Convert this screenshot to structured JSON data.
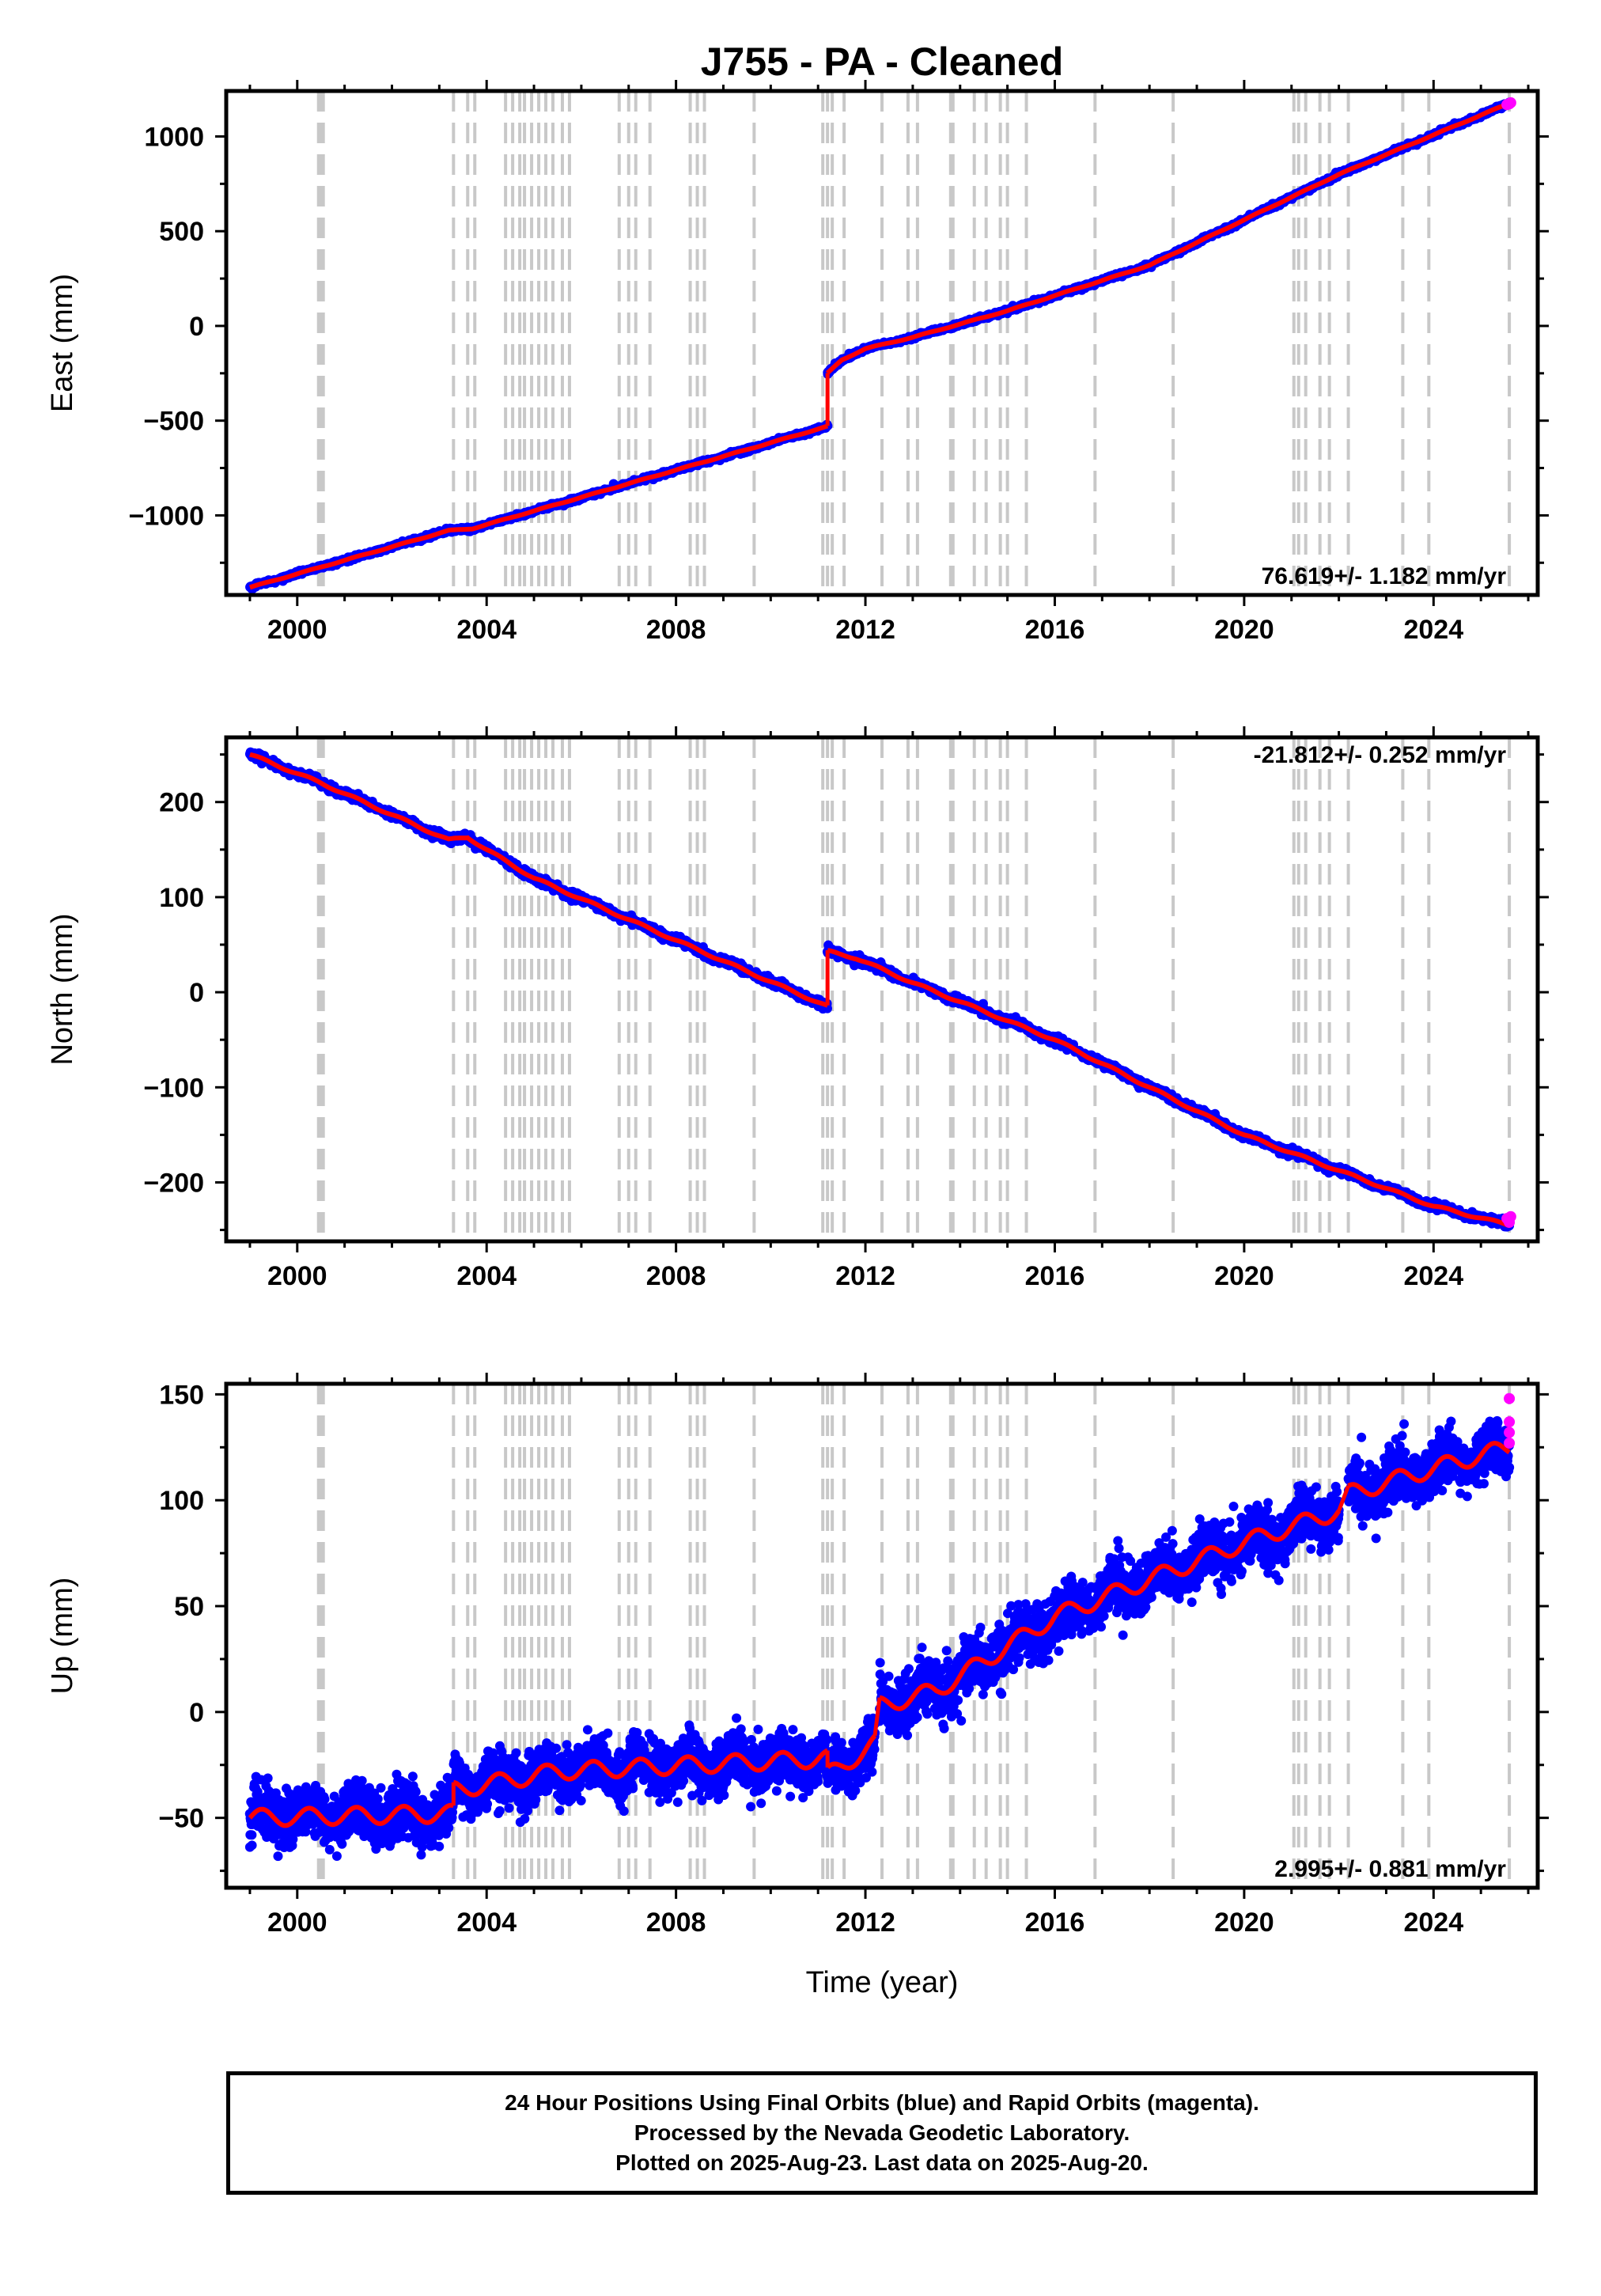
{
  "title": "J755  - PA - Cleaned",
  "x_axis_label": "Time (year)",
  "footer": {
    "line1": "24 Hour Positions Using Final Orbits (blue) and Rapid Orbits (magenta).",
    "line2": "Processed by the Nevada Geodetic Laboratory.",
    "line3": "Plotted on 2025-Aug-23. Last data on 2025-Aug-20."
  },
  "colors": {
    "final_orbits": "#0000ff",
    "rapid_orbits": "#ff00ff",
    "model": "#ff0000",
    "event_lines": "#c8c8c8"
  },
  "chart_data": [
    {
      "type": "scatter",
      "name": "east",
      "ylabel": "East (mm)",
      "xlim": [
        1998.5,
        2026.2
      ],
      "ylim": [
        -1420,
        1240
      ],
      "yticks": [
        -1000,
        -500,
        0,
        500,
        1000
      ],
      "xticks": [
        2000,
        2004,
        2008,
        2012,
        2016,
        2020,
        2024
      ],
      "rate_label": "76.619+/- 1.182 mm/yr",
      "rate_position": "bottom-right",
      "scatter_spread": 10,
      "segments": [
        {
          "x": [
            1999.0,
            2003.2,
            2003.7,
            2011.2
          ],
          "y": [
            -1380,
            -1080,
            -1070,
            -530
          ]
        },
        {
          "x": [
            2011.2,
            2011.5,
            2012.0,
            2013.0,
            2015.0,
            2018.0,
            2022.0,
            2025.6
          ],
          "y": [
            -250,
            -180,
            -120,
            -60,
            80,
            320,
            800,
            1175
          ]
        }
      ],
      "rapid_points": {
        "x": [
          2025.55,
          2025.6,
          2025.63
        ],
        "y": [
          1168,
          1172,
          1178
        ]
      }
    },
    {
      "type": "scatter",
      "name": "north",
      "ylabel": "North (mm)",
      "xlim": [
        1998.5,
        2026.2
      ],
      "ylim": [
        -262,
        268
      ],
      "yticks": [
        -200,
        -100,
        0,
        100,
        200
      ],
      "xticks": [
        2000,
        2004,
        2008,
        2012,
        2016,
        2020,
        2024
      ],
      "rate_label": "-21.812+/- 0.252 mm/yr",
      "rate_position": "top-right",
      "scatter_spread": 4,
      "segments": [
        {
          "x": [
            1999.0,
            2000.5,
            2003.2,
            2003.6,
            2004.0,
            2005.0,
            2011.2
          ],
          "y": [
            250,
            220,
            160,
            163,
            150,
            120,
            -15
          ]
        },
        {
          "x": [
            2011.2,
            2011.8,
            2013.0,
            2016.0,
            2020.0,
            2024.0,
            2025.6
          ],
          "y": [
            43,
            36,
            10,
            -50,
            -150,
            -225,
            -245
          ]
        }
      ],
      "rapid_points": {
        "x": [
          2025.55,
          2025.6,
          2025.63
        ],
        "y": [
          -238,
          -242,
          -236
        ]
      }
    },
    {
      "type": "scatter",
      "name": "up",
      "ylabel": "Up (mm)",
      "xlim": [
        1998.5,
        2026.2
      ],
      "ylim": [
        -83,
        155
      ],
      "yticks": [
        -50,
        0,
        50,
        100,
        150
      ],
      "xticks": [
        2000,
        2004,
        2008,
        2012,
        2016,
        2020,
        2024
      ],
      "rate_label": "2.995+/- 0.881 mm/yr",
      "rate_position": "bottom-right",
      "scatter_spread": 12,
      "segments": [
        {
          "x": [
            1999.0,
            2003.3
          ],
          "y": [
            -50,
            -48
          ]
        },
        {
          "x": [
            2003.3,
            2005.5,
            2011.2
          ],
          "y": [
            -37,
            -28,
            -22
          ]
        },
        {
          "x": [
            2011.2,
            2012.2
          ],
          "y": [
            -30,
            -15
          ]
        },
        {
          "x": [
            2012.3,
            2013.5,
            2016.0,
            2020.0,
            2022.0
          ],
          "y": [
            3,
            10,
            45,
            80,
            95
          ]
        },
        {
          "x": [
            2022.2,
            2024.0,
            2025.6
          ],
          "y": [
            103,
            115,
            125
          ]
        }
      ],
      "rapid_points": {
        "x": [
          2025.6,
          2025.6,
          2025.6,
          2025.6
        ],
        "y": [
          148,
          137,
          132,
          127
        ]
      }
    }
  ],
  "event_lines": [
    2000.45,
    2000.5,
    2000.55,
    2003.3,
    2003.6,
    2003.75,
    2004.4,
    2004.55,
    2004.7,
    2004.8,
    2004.95,
    2005.1,
    2005.25,
    2005.4,
    2005.6,
    2005.75,
    2006.8,
    2007.0,
    2007.15,
    2007.45,
    2008.3,
    2008.45,
    2008.6,
    2009.65,
    2011.1,
    2011.2,
    2011.3,
    2011.55,
    2012.35,
    2012.9,
    2013.1,
    2013.8,
    2013.85,
    2014.3,
    2014.55,
    2014.85,
    2015.0,
    2015.4,
    2016.85,
    2018.5,
    2021.05,
    2021.15,
    2021.3,
    2021.6,
    2021.8,
    2022.2,
    2023.35,
    2023.9,
    2025.6
  ]
}
